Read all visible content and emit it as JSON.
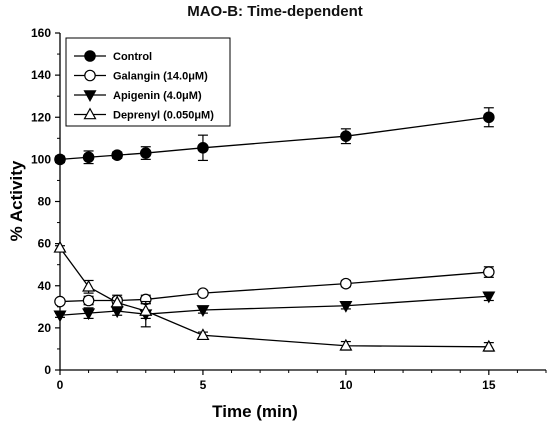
{
  "chart_data": {
    "type": "line",
    "title": "MAO-B: Time-dependent",
    "xlabel": "Time (min)",
    "ylabel": "% Activity",
    "xlim": [
      0,
      17
    ],
    "ylim": [
      0,
      160
    ],
    "xticks": [
      "0",
      "5",
      "10",
      "15"
    ],
    "yticks": [
      "0",
      "20",
      "40",
      "60",
      "80",
      "100",
      "120",
      "140",
      "160"
    ],
    "legend_position": "top-left",
    "grid": false,
    "series": [
      {
        "name": "Control",
        "marker": "filled-circle",
        "x": [
          0,
          1,
          2,
          3,
          5,
          10,
          15
        ],
        "y": [
          100,
          101,
          102,
          103,
          105.5,
          111,
          120
        ],
        "err": [
          1.5,
          3,
          1.5,
          3,
          6,
          3.5,
          4.5
        ]
      },
      {
        "name": "Galangin (14.0μM)",
        "marker": "open-circle",
        "x": [
          0,
          1,
          2,
          3,
          5,
          10,
          15
        ],
        "y": [
          32.5,
          33,
          33,
          33.5,
          36.5,
          41,
          46.5
        ],
        "err": [
          1,
          2,
          1.5,
          2,
          1,
          1.5,
          2.5
        ]
      },
      {
        "name": "Apigenin (4.0μM)",
        "marker": "filled-triangle-down",
        "x": [
          0,
          1,
          2,
          3,
          5,
          10,
          15
        ],
        "y": [
          26,
          27,
          28,
          26.5,
          28.5,
          30.5,
          35
        ],
        "err": [
          1,
          2.5,
          2,
          6,
          1.5,
          1.5,
          2
        ]
      },
      {
        "name": "Deprenyl (0.050μM)",
        "marker": "open-triangle-up",
        "x": [
          0,
          1,
          2,
          3,
          5,
          10,
          15
        ],
        "y": [
          58,
          39.5,
          32,
          28,
          16.5,
          11.5,
          11
        ],
        "err": [
          1,
          3,
          3.5,
          3.5,
          1.5,
          2,
          2
        ]
      }
    ]
  }
}
